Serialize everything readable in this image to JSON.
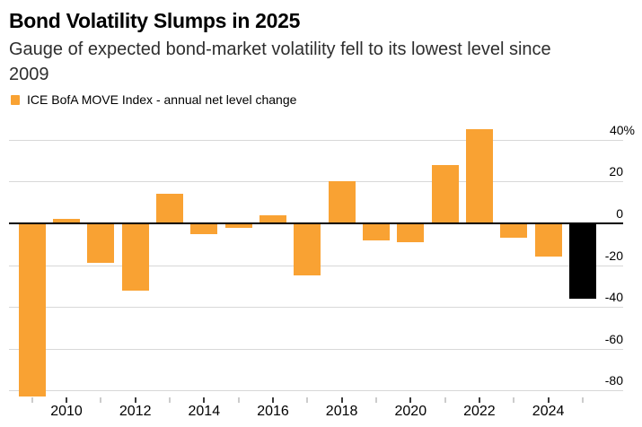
{
  "header": {
    "title": "Bond Volatility Slumps in 2025",
    "subtitle": "Gauge of expected bond-market volatility fell to its lowest level since 2009"
  },
  "legend": {
    "label": "ICE BofA MOVE Index - annual net level change"
  },
  "colors": {
    "bar_default": "#F9A233",
    "bar_highlight": "#000000",
    "gridline": "#D8D8D8",
    "zero_line": "#000000",
    "tick_major": "#3D3D3D",
    "tick_minor": "#CCCCCC",
    "title_text": "#000000",
    "subtitle_text": "#2E2E2E",
    "axis_text": "#000000",
    "background": "#FFFFFF"
  },
  "chart_data": {
    "type": "bar",
    "title": "Bond Volatility Slumps in 2025",
    "subtitle": "Gauge of expected bond-market volatility fell to its lowest level since 2009",
    "legend_entries": [
      "ICE BofA MOVE Index - annual net level change"
    ],
    "categories": [
      "2009",
      "2010",
      "2011",
      "2012",
      "2013",
      "2014",
      "2015",
      "2016",
      "2017",
      "2018",
      "2019",
      "2020",
      "2021",
      "2022",
      "2023",
      "2024",
      "2025"
    ],
    "values": [
      -83,
      2,
      -19,
      -32,
      14,
      -5,
      -2,
      4,
      -25,
      20,
      -8,
      -9,
      28,
      45,
      -7,
      -16,
      -36
    ],
    "highlighted_category": "2025",
    "xlabel": "",
    "ylabel": "",
    "ylim": [
      -84,
      47
    ],
    "yticks": [
      40,
      20,
      0,
      -20,
      -40,
      -60,
      -80
    ],
    "ytick_labels": [
      "40%",
      "20",
      "0",
      "-20",
      "-40",
      "-60",
      "-80"
    ],
    "xtick_labeled_categories": [
      "2010",
      "2012",
      "2014",
      "2016",
      "2018",
      "2020",
      "2022",
      "2024"
    ],
    "grid": "horizontal",
    "zero_line": true,
    "legend_position": "top-left",
    "y_axis_side": "right"
  }
}
